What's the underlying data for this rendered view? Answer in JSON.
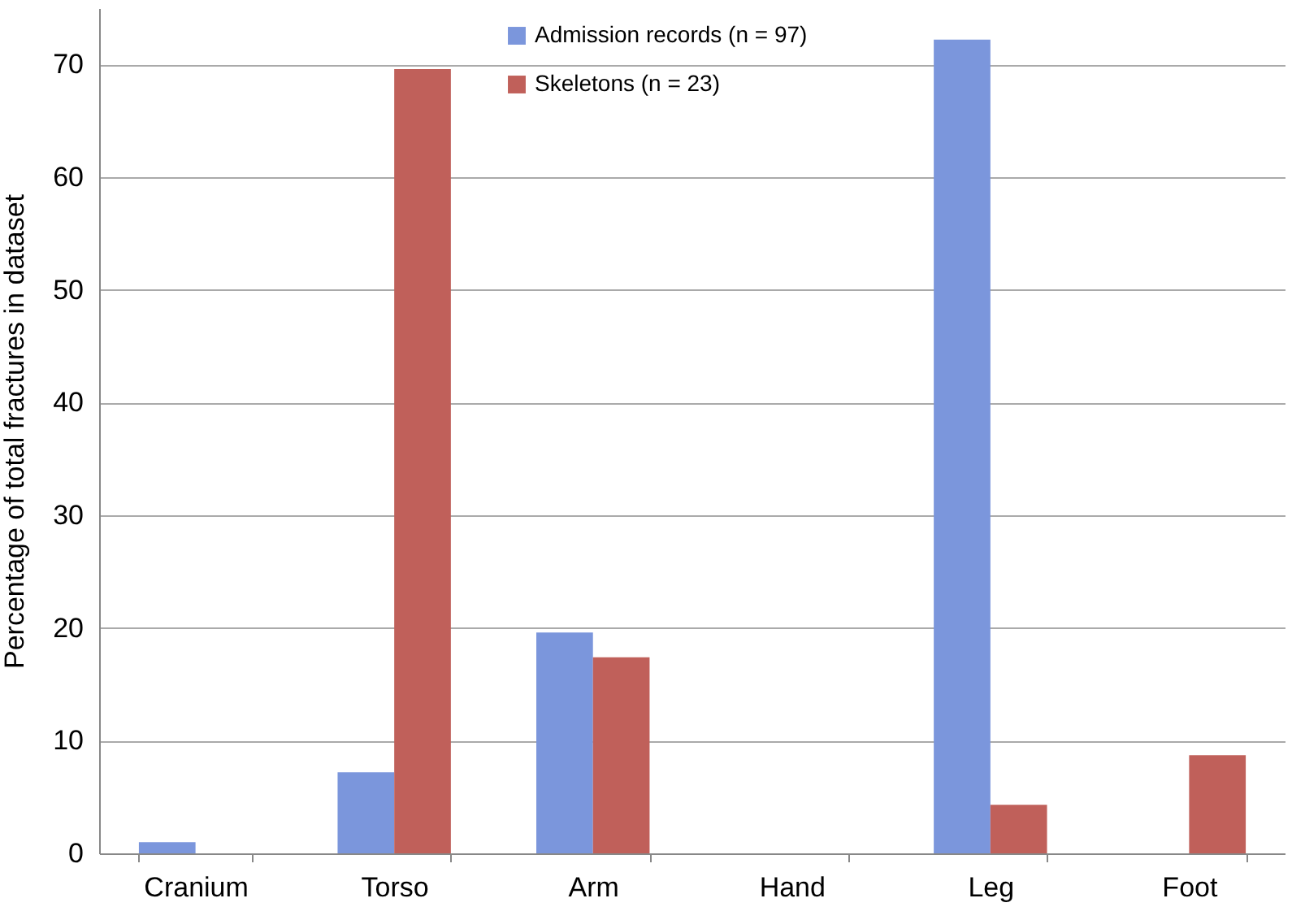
{
  "chart_data": {
    "type": "bar",
    "ylabel": "Percentage of total fractures in dataset",
    "categories": [
      "Cranium",
      "Torso",
      "Arm",
      "Hand",
      "Leg",
      "Foot"
    ],
    "series": [
      {
        "name": "Admission records (n = 97)",
        "color": "#7b96dc",
        "values": [
          1.0,
          7.2,
          19.6,
          0,
          72.2,
          0
        ]
      },
      {
        "name": "Skeletons (n = 23)",
        "color": "#c0605a",
        "values": [
          0,
          69.6,
          17.4,
          0,
          4.3,
          8.7
        ]
      }
    ],
    "ylim": [
      0,
      75
    ],
    "yticks": [
      0,
      10,
      20,
      30,
      40,
      50,
      60,
      70
    ],
    "grid": "y",
    "legend": "top"
  }
}
